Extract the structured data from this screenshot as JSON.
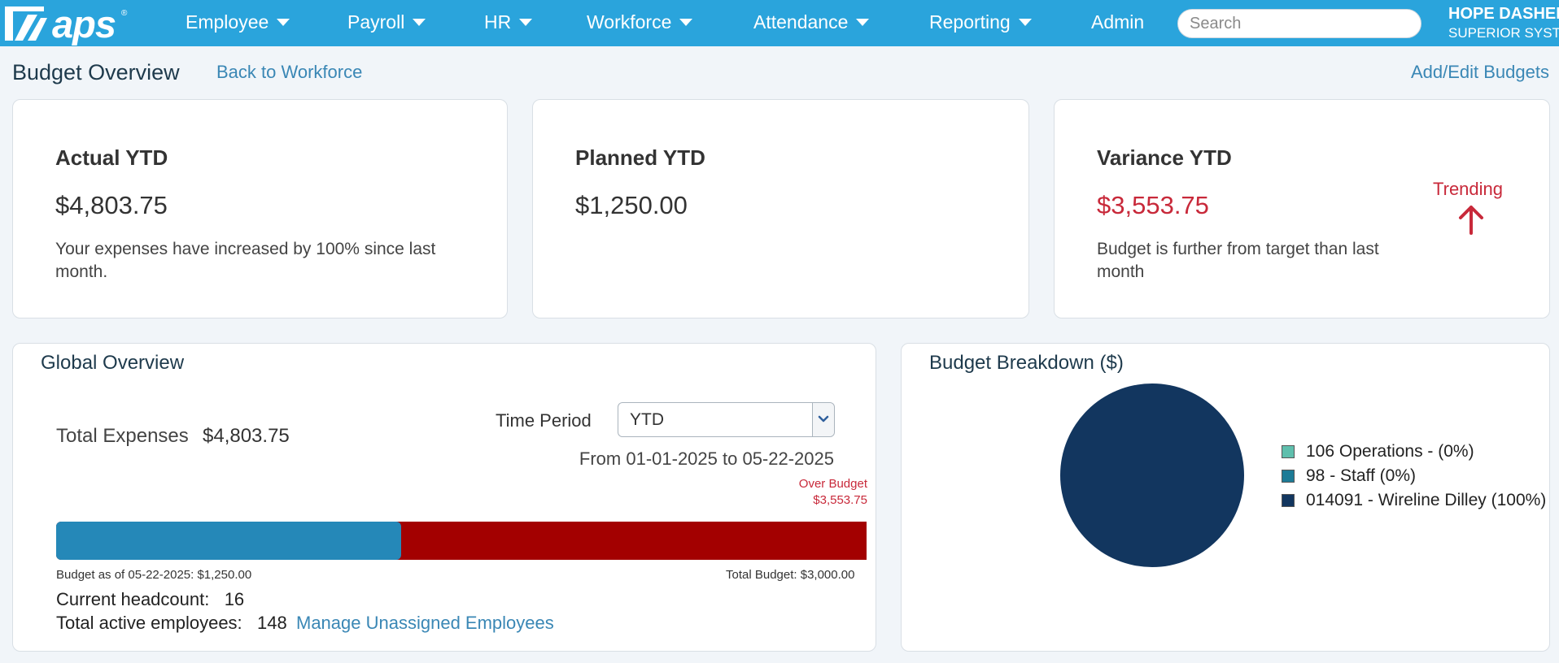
{
  "app": {
    "logo_text": "aps",
    "logo_mark": "®"
  },
  "nav": {
    "items": [
      {
        "label": "Employee",
        "has_dropdown": true
      },
      {
        "label": "Payroll",
        "has_dropdown": true
      },
      {
        "label": "HR",
        "has_dropdown": true
      },
      {
        "label": "Workforce",
        "has_dropdown": true
      },
      {
        "label": "Attendance",
        "has_dropdown": true
      },
      {
        "label": "Reporting",
        "has_dropdown": true
      },
      {
        "label": "Admin",
        "has_dropdown": false
      }
    ],
    "search_placeholder": "Search",
    "search_icon": "none",
    "user_name": "HOPE DASHER",
    "user_company": "SUPERIOR SYSTEMS"
  },
  "header": {
    "title": "Budget Overview",
    "back_link": "Back to Workforce",
    "add_edit_link": "Add/Edit Budgets"
  },
  "kpis": {
    "actual": {
      "title": "Actual YTD",
      "value": "$4,803.75",
      "description": "Your expenses have increased by 100% since last month."
    },
    "planned": {
      "title": "Planned YTD",
      "value": "$1,250.00"
    },
    "variance": {
      "title": "Variance YTD",
      "value": "$3,553.75",
      "description": "Budget is further from target than last month",
      "trending_label": "Trending",
      "trend_icon": "arrow-up-icon"
    }
  },
  "global_overview": {
    "title": "Global Overview",
    "total_expenses_label": "Total Expenses",
    "total_expenses_value": "$4,803.75",
    "time_period_label": "Time Period",
    "time_period_value": "YTD",
    "date_range": "From 01-01-2025 to 05-22-2025",
    "over_budget_label": "Over Budget",
    "over_budget_value": "$3,553.75",
    "budget_fraction": 0.416,
    "budget_as_of": "Budget as of 05-22-2025: $1,250.00",
    "total_budget": "Total Budget: $3,000.00",
    "headcount_label": "Current headcount:",
    "headcount_value": "16",
    "active_label": "Total active employees:",
    "active_value": "148",
    "manage_link": "Manage Unassigned Employees"
  },
  "budget_breakdown": {
    "title": "Budget Breakdown ($)",
    "legend": [
      {
        "label": "106 Operations - (0%)",
        "color": "#5fbfad"
      },
      {
        "label": "98 - Staff (0%)",
        "color": "#1d7b96"
      },
      {
        "label": "014091 - Wireline Dilley (100%)",
        "color": "#12365f"
      }
    ]
  },
  "chart_data": {
    "type": "pie",
    "title": "Budget Breakdown ($)",
    "categories": [
      "106 Operations",
      "98 - Staff",
      "014091 - Wireline Dilley"
    ],
    "values": [
      0,
      0,
      100
    ],
    "colors": [
      "#5fbfad",
      "#1d7b96",
      "#12365f"
    ],
    "legend_position": "right"
  },
  "colors": {
    "nav_bg": "#2aa4dc",
    "accent_link": "#3a87b5",
    "negative": "#c8293a",
    "bar_budget": "#2588b8",
    "bar_over": "#a30000"
  }
}
